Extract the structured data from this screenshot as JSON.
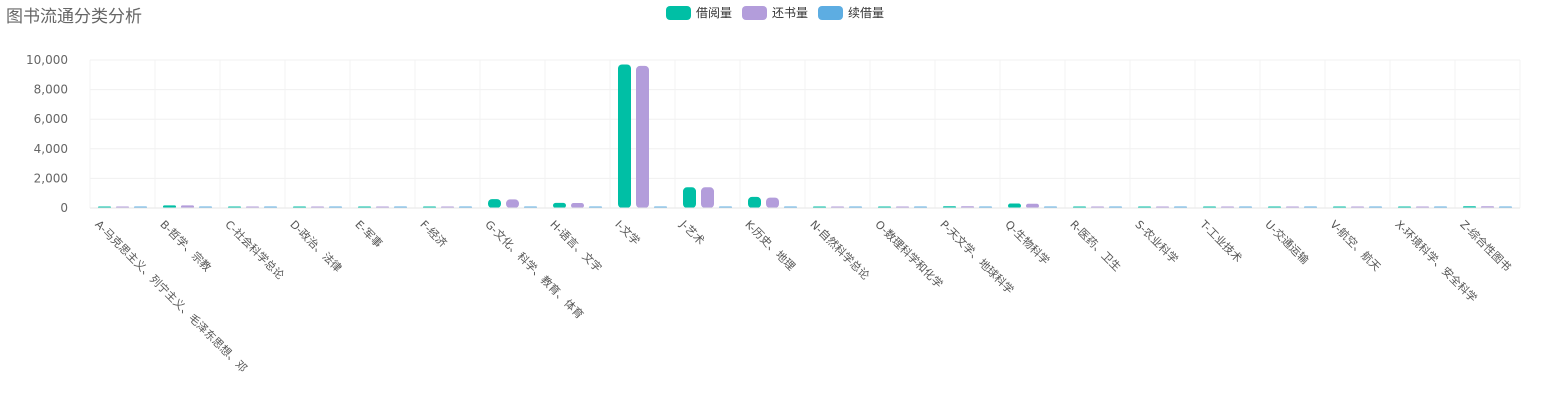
{
  "chart_data": {
    "type": "bar",
    "title": "图书流通分类分析",
    "categories": [
      "A-马克思主义、列宁主义、毛泽东思想、邓",
      "B-哲学、宗教",
      "C-社会科学总论",
      "D-政治、法律",
      "E-军事",
      "F-经济",
      "G-文化、科学、教育、体育",
      "H-语言、文字",
      "I-文学",
      "J-艺术",
      "K-历史、地理",
      "N-自然科学总论",
      "O-数理科学和化学",
      "P-天文学、地球科学",
      "Q-生物科学",
      "R-医药、卫生",
      "S-农业科学",
      "T-工业技术",
      "U-交通运输",
      "V-航空、航天",
      "X-环境科学、安全科学",
      "Z-综合性图书"
    ],
    "series": [
      {
        "name": "借阅量",
        "color": "#00BFA5",
        "values": [
          15,
          180,
          30,
          40,
          60,
          50,
          600,
          350,
          9700,
          1400,
          750,
          50,
          80,
          120,
          300,
          100,
          20,
          60,
          30,
          20,
          40,
          120
        ]
      },
      {
        "name": "还书量",
        "color": "#B39DDB",
        "values": [
          15,
          175,
          30,
          40,
          60,
          50,
          580,
          340,
          9600,
          1400,
          700,
          50,
          80,
          115,
          290,
          100,
          20,
          60,
          30,
          20,
          40,
          115
        ]
      },
      {
        "name": "续借量",
        "color": "#5DADE2",
        "values": [
          0,
          2,
          0,
          0,
          0,
          0,
          3,
          2,
          10,
          4,
          2,
          0,
          0,
          1,
          1,
          0,
          0,
          0,
          0,
          0,
          0,
          1
        ]
      }
    ],
    "yticks": [
      "0",
      "2,000",
      "4,000",
      "6,000",
      "8,000",
      "10,000"
    ],
    "ylim": [
      0,
      10000
    ],
    "grid": true,
    "legend_position": "top-center"
  }
}
